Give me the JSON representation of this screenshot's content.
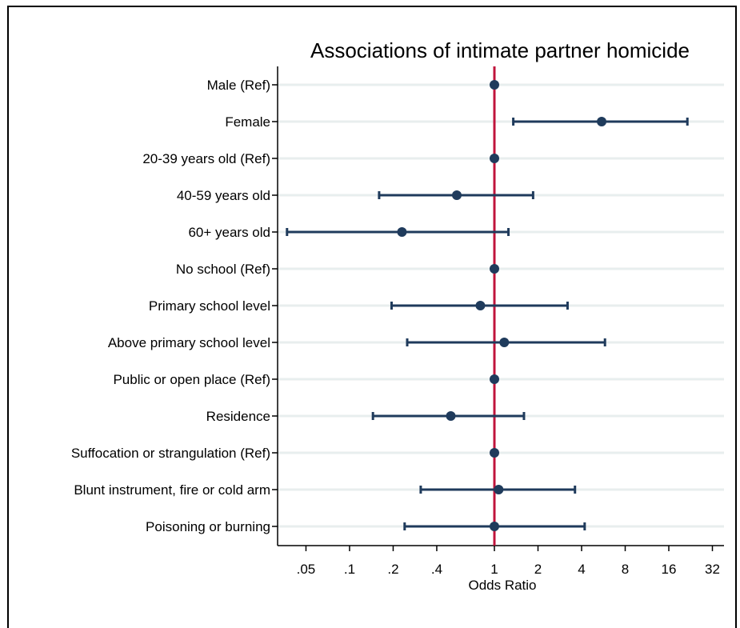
{
  "chart_data": {
    "type": "forest",
    "title": "Associations of intimate partner homicide",
    "xlabel": "Odds Ratio",
    "x_scale": "log",
    "xlim": [
      0.03,
      40
    ],
    "xticks": [
      0.05,
      0.1,
      0.2,
      0.4,
      1,
      2,
      4,
      8,
      16,
      32
    ],
    "xtick_labels": [
      ".05",
      ".1",
      ".2",
      ".4",
      "1",
      "2",
      "4",
      "8",
      "16",
      "32"
    ],
    "reference_line": 1,
    "grid": true,
    "colors": {
      "point": "#1f3b5c",
      "ci": "#1f3b5c",
      "reference": "#c0143c",
      "grid": "#e8eeee"
    },
    "rows": [
      {
        "label": "Male (Ref)",
        "or": 1,
        "lo": null,
        "hi": null
      },
      {
        "label": "Female",
        "or": 5.5,
        "lo": 1.35,
        "hi": 21.5
      },
      {
        "label": "20-39 years old (Ref)",
        "or": 1,
        "lo": null,
        "hi": null
      },
      {
        "label": "40-59 years old",
        "or": 0.55,
        "lo": 0.16,
        "hi": 1.85
      },
      {
        "label": "60+ years old",
        "or": 0.23,
        "lo": 0.037,
        "hi": 1.25
      },
      {
        "label": "No school (Ref)",
        "or": 1,
        "lo": null,
        "hi": null
      },
      {
        "label": "Primary school level",
        "or": 0.8,
        "lo": 0.195,
        "hi": 3.2
      },
      {
        "label": "Above primary school level",
        "or": 1.17,
        "lo": 0.25,
        "hi": 5.8
      },
      {
        "label": "Public or open place (Ref)",
        "or": 1,
        "lo": null,
        "hi": null
      },
      {
        "label": "Residence",
        "or": 0.5,
        "lo": 0.145,
        "hi": 1.6
      },
      {
        "label": "Suffocation or strangulation (Ref)",
        "or": 1,
        "lo": null,
        "hi": null
      },
      {
        "label": "Blunt instrument, fire or cold arm",
        "or": 1.07,
        "lo": 0.31,
        "hi": 3.6
      },
      {
        "label": "Poisoning or burning",
        "or": 1,
        "lo": 0.24,
        "hi": 4.2
      }
    ]
  }
}
